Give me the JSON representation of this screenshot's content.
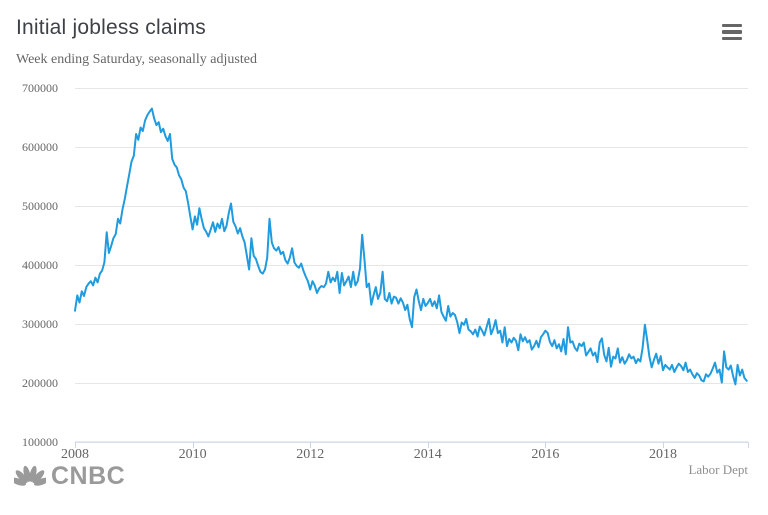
{
  "header": {
    "menu_tooltip": "Chart context menu"
  },
  "icons": {
    "menu": "hamburger-menu-icon",
    "logo": "cnbc-peacock-icon"
  },
  "logo": {
    "text": "CNBC"
  },
  "chart_data": {
    "type": "line",
    "title": "Initial jobless claims",
    "subtitle": "Week ending Saturday, seasonally adjusted",
    "source": "Labor Dept",
    "series_name": "Initial jobless claims",
    "line_color": "#1f9bde",
    "grid": true,
    "gridline_color": "#e6e6e6",
    "axis_line_color": "#ccd6eb",
    "ylim": [
      100000,
      700000
    ],
    "xlim": [
      2008,
      2019.45
    ],
    "x_start": 2008,
    "x_step_years": 0.0384615,
    "y_ticks": [
      "700000",
      "600000",
      "500000",
      "400000",
      "300000",
      "200000",
      "100000"
    ],
    "x_ticks": [
      "2008",
      "2010",
      "2012",
      "2014",
      "2016",
      "2018"
    ],
    "values": [
      322000,
      348000,
      336000,
      355000,
      347000,
      362000,
      368000,
      372000,
      365000,
      378000,
      370000,
      385000,
      390000,
      404000,
      455000,
      420000,
      432000,
      445000,
      452000,
      478000,
      470000,
      494000,
      512000,
      533000,
      554000,
      575000,
      585000,
      622000,
      612000,
      633000,
      627000,
      645000,
      654000,
      660000,
      665000,
      648000,
      637000,
      642000,
      625000,
      631000,
      618000,
      610000,
      622000,
      580000,
      570000,
      565000,
      552000,
      545000,
      531000,
      525000,
      505000,
      482000,
      460000,
      482000,
      468000,
      496000,
      478000,
      462000,
      456000,
      448000,
      460000,
      472000,
      456000,
      470000,
      462000,
      478000,
      457000,
      466000,
      488000,
      504000,
      473000,
      465000,
      453000,
      462000,
      448000,
      438000,
      415000,
      392000,
      445000,
      415000,
      410000,
      398000,
      388000,
      385000,
      392000,
      412000,
      478000,
      438000,
      428000,
      424000,
      430000,
      418000,
      422000,
      408000,
      402000,
      412000,
      428000,
      404000,
      398000,
      395000,
      402000,
      390000,
      380000,
      372000,
      358000,
      372000,
      365000,
      352000,
      360000,
      364000,
      362000,
      368000,
      388000,
      370000,
      378000,
      372000,
      388000,
      352000,
      386000,
      365000,
      372000,
      380000,
      362000,
      388000,
      365000,
      372000,
      394000,
      451000,
      408000,
      362000,
      368000,
      332000,
      348000,
      362000,
      342000,
      352000,
      388000,
      342000,
      338000,
      352000,
      334000,
      346000,
      344000,
      334000,
      343000,
      336000,
      323000,
      332000,
      308000,
      294000,
      345000,
      358000,
      338000,
      323000,
      342000,
      330000,
      335000,
      342000,
      330000,
      338000,
      326000,
      348000,
      320000,
      312000,
      305000,
      330000,
      312000,
      318000,
      315000,
      303000,
      284000,
      302000,
      298000,
      308000,
      290000,
      287000,
      282000,
      290000,
      278000,
      295000,
      288000,
      280000,
      294000,
      308000,
      282000,
      292000,
      306000,
      284000,
      288000,
      268000,
      294000,
      262000,
      274000,
      268000,
      276000,
      271000,
      255000,
      282000,
      270000,
      277000,
      268000,
      272000,
      256000,
      262000,
      271000,
      260000,
      277000,
      282000,
      288000,
      284000,
      269000,
      262000,
      272000,
      258000,
      265000,
      253000,
      274000,
      248000,
      294000,
      268000,
      270000,
      259000,
      254000,
      266000,
      262000,
      268000,
      246000,
      252000,
      258000,
      246000,
      251000,
      235000,
      268000,
      275000,
      247000,
      236000,
      259000,
      227000,
      244000,
      241000,
      258000,
      234000,
      243000,
      232000,
      238000,
      248000,
      241000,
      244000,
      233000,
      240000,
      236000,
      259000,
      298000,
      272000,
      244000,
      226000,
      239000,
      249000,
      232000,
      245000,
      221000,
      230000,
      226000,
      222000,
      230000,
      218000,
      226000,
      232000,
      228000,
      221000,
      234000,
      218000,
      222000,
      214000,
      208000,
      216000,
      212000,
      204000,
      202000,
      214000,
      210000,
      215000,
      224000,
      234000,
      217000,
      222000,
      200000,
      253000,
      226000,
      222000,
      229000,
      211000,
      197000,
      230000,
      212000,
      222000,
      208000,
      203000
    ]
  }
}
